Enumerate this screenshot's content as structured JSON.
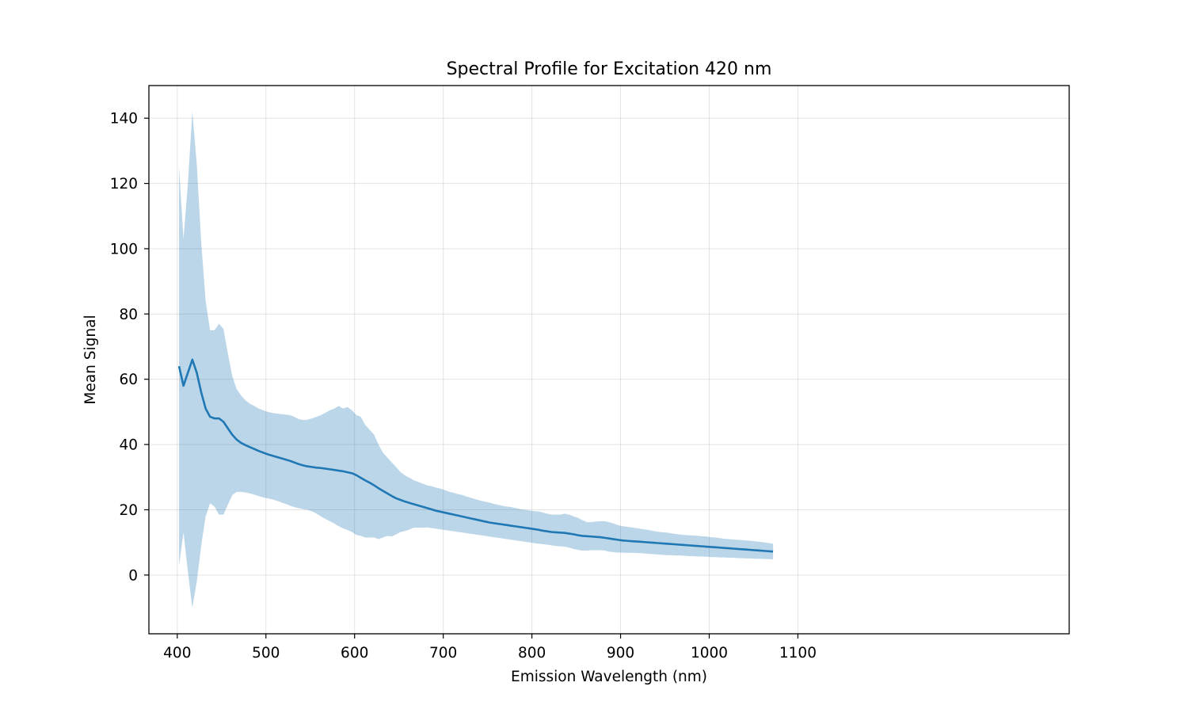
{
  "chart_data": {
    "type": "line",
    "title": "Spectral Profile for Excitation 420 nm",
    "xlabel": "Emission Wavelength (nm)",
    "ylabel": "Mean Signal",
    "xlim": [
      368,
      1406
    ],
    "ylim": [
      -18,
      150
    ],
    "xticks": [
      400,
      500,
      600,
      700,
      800,
      900,
      1000,
      1100
    ],
    "yticks": [
      0,
      20,
      40,
      60,
      80,
      100,
      120,
      140
    ],
    "grid": true,
    "legend": "none",
    "colors": {
      "line": "#1f77b4",
      "band": "#1f77b4",
      "band_opacity": 0.3
    },
    "series": [
      {
        "x": [
          402,
          407,
          412,
          417,
          422,
          427,
          432,
          437,
          442,
          447,
          452,
          457,
          462,
          467,
          472,
          477,
          482,
          487,
          492,
          497,
          502,
          507,
          512,
          517,
          522,
          527,
          532,
          537,
          542,
          547,
          552,
          557,
          562,
          567,
          572,
          577,
          582,
          587,
          592,
          597,
          602,
          607,
          612,
          617,
          622,
          627,
          632,
          637,
          642,
          647,
          652,
          657,
          662,
          667,
          672,
          677,
          682,
          687,
          692,
          697,
          702,
          707,
          712,
          717,
          722,
          727,
          732,
          737,
          742,
          747,
          752,
          757,
          762,
          767,
          772,
          777,
          782,
          787,
          792,
          797,
          802,
          807,
          812,
          817,
          822,
          827,
          832,
          837,
          842,
          847,
          852,
          857,
          862,
          867,
          872,
          877,
          882,
          887,
          892,
          897,
          902,
          907,
          912,
          917,
          922,
          927,
          932,
          937,
          942,
          947,
          952,
          957,
          962,
          967,
          972,
          977,
          982,
          987,
          992,
          997,
          1002,
          1007,
          1012,
          1017,
          1022,
          1027,
          1032,
          1037,
          1042,
          1047,
          1052,
          1057,
          1062,
          1067,
          1072
        ],
        "mean": [
          64,
          58,
          62,
          66,
          62,
          56,
          51,
          48.5,
          48,
          48,
          47,
          45,
          43,
          41.5,
          40.5,
          39.8,
          39.2,
          38.6,
          38,
          37.5,
          37,
          36.6,
          36.2,
          35.8,
          35.4,
          35,
          34.5,
          34,
          33.6,
          33.3,
          33.1,
          32.9,
          32.8,
          32.6,
          32.4,
          32.2,
          32,
          31.8,
          31.5,
          31.2,
          30.6,
          29.8,
          29,
          28.3,
          27.5,
          26.6,
          25.8,
          25,
          24.2,
          23.5,
          23,
          22.5,
          22.1,
          21.7,
          21.3,
          20.9,
          20.5,
          20.1,
          19.7,
          19.4,
          19.1,
          18.8,
          18.5,
          18.2,
          17.9,
          17.6,
          17.3,
          17,
          16.7,
          16.4,
          16.1,
          15.9,
          15.7,
          15.5,
          15.3,
          15.1,
          14.9,
          14.7,
          14.5,
          14.3,
          14.1,
          13.9,
          13.6,
          13.4,
          13.2,
          13.1,
          13,
          12.9,
          12.7,
          12.5,
          12.2,
          12,
          11.9,
          11.8,
          11.7,
          11.6,
          11.4,
          11.2,
          11,
          10.8,
          10.6,
          10.5,
          10.4,
          10.3,
          10.2,
          10.1,
          10,
          9.9,
          9.8,
          9.7,
          9.6,
          9.5,
          9.4,
          9.3,
          9.2,
          9.1,
          9,
          8.9,
          8.8,
          8.7,
          8.6,
          8.5,
          8.4,
          8.3,
          8.2,
          8.1,
          8,
          7.9,
          7.8,
          7.7,
          7.6,
          7.5,
          7.4,
          7.3,
          7.2
        ],
        "upper": [
          125,
          103,
          120,
          142,
          126,
          102,
          84,
          75,
          75,
          77,
          75.5,
          68,
          61,
          57,
          55,
          53.5,
          52.5,
          51.8,
          51,
          50.5,
          50,
          49.7,
          49.5,
          49.3,
          49.2,
          49,
          48.5,
          47.8,
          47.5,
          47.6,
          48,
          48.5,
          49,
          49.7,
          50.5,
          51,
          51.8,
          51,
          51.5,
          50.5,
          49,
          48.5,
          46,
          44.5,
          43,
          40,
          37.5,
          36,
          34.5,
          33,
          31.5,
          30.5,
          29.8,
          29,
          28.5,
          28,
          27.5,
          27.2,
          26.8,
          26.5,
          26,
          25.5,
          25.2,
          24.8,
          24.5,
          24,
          23.6,
          23.2,
          22.8,
          22.5,
          22.2,
          21.8,
          21.5,
          21.2,
          21,
          20.8,
          20.5,
          20.2,
          20,
          19.8,
          19.6,
          19.5,
          19.2,
          18.8,
          18.5,
          18.5,
          18.5,
          18.8,
          18.5,
          18,
          17.5,
          16.8,
          16.2,
          16.2,
          16.4,
          16.5,
          16.5,
          16.2,
          15.8,
          15.3,
          15,
          14.8,
          14.6,
          14.4,
          14.2,
          14,
          13.8,
          13.5,
          13.3,
          13.1,
          13,
          12.8,
          12.6,
          12.4,
          12.3,
          12.2,
          12.1,
          12,
          11.9,
          11.8,
          11.6,
          11.5,
          11.3,
          11.1,
          11,
          10.9,
          10.8,
          10.7,
          10.6,
          10.5,
          10.3,
          10.2,
          10,
          9.8,
          9.6
        ],
        "lower": [
          3,
          13,
          1,
          -10,
          -2,
          9,
          18,
          22,
          21,
          18.5,
          18.5,
          21.5,
          24.5,
          25.5,
          25.5,
          25.3,
          25,
          24.6,
          24.2,
          23.8,
          23.5,
          23.2,
          22.8,
          22.3,
          21.8,
          21.3,
          20.8,
          20.5,
          20.2,
          20,
          19.5,
          18.8,
          18,
          17.2,
          16.5,
          15.8,
          15,
          14.3,
          13.8,
          13.2,
          12.3,
          12,
          11.5,
          11.5,
          11.5,
          11,
          11.5,
          12,
          11.8,
          12.5,
          13.2,
          13.5,
          14,
          14.5,
          14.5,
          14.5,
          14.6,
          14.4,
          14.2,
          14,
          13.8,
          13.6,
          13.4,
          13.2,
          13,
          12.8,
          12.6,
          12.4,
          12.2,
          12,
          11.8,
          11.6,
          11.4,
          11.2,
          11,
          10.8,
          10.6,
          10.4,
          10.2,
          10,
          9.8,
          9.6,
          9.5,
          9.3,
          9.1,
          8.9,
          8.8,
          8.7,
          8.4,
          8,
          7.7,
          7.5,
          7.5,
          7.6,
          7.6,
          7.6,
          7.5,
          7.2,
          7,
          6.9,
          6.9,
          6.8,
          6.8,
          6.8,
          6.7,
          6.6,
          6.5,
          6.4,
          6.3,
          6.2,
          6.1,
          6.1,
          6,
          6,
          5.9,
          5.8,
          5.8,
          5.7,
          5.7,
          5.6,
          5.5,
          5.5,
          5.4,
          5.4,
          5.3,
          5.3,
          5.2,
          5.2,
          5.1,
          5.1,
          5,
          5,
          4.9,
          4.9,
          4.8
        ]
      }
    ]
  }
}
